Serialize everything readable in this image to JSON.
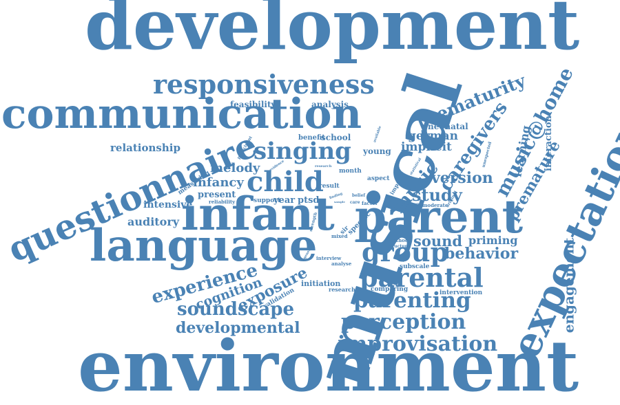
{
  "colors": {
    "word": "#4a82b4",
    "background": "#ffffff"
  },
  "words": [
    "development",
    "environment",
    "musical",
    "infant",
    "parent",
    "language",
    "communication",
    "questionnaire",
    "expectation",
    "responsiveness",
    "child",
    "singing",
    "parental",
    "group",
    "parenting",
    "perception",
    "improvisation",
    "soundscape",
    "developmental",
    "experience",
    "exposure",
    "cognition",
    "prematurity",
    "caregivers",
    "music",
    "music@home",
    "premature",
    "engagement",
    "behavior",
    "sound",
    "priming",
    "study",
    "version",
    "german",
    "implicit",
    "neonatal",
    "learning",
    "interaction",
    "melody",
    "infancy",
    "relationship",
    "auditory",
    "intensive",
    "present",
    "measuring",
    "reliability",
    "year",
    "ptsd",
    "feasibility",
    "analysis",
    "benefit",
    "school",
    "young",
    "participant",
    "month",
    "aspect",
    "support",
    "result",
    "validation",
    "initiation",
    "researcher",
    "comparing",
    "intervention",
    "subscale",
    "interview",
    "analyse",
    "method",
    "structure",
    "mixed",
    "strength",
    "specific",
    "impact",
    "unexpected",
    "factor",
    "different",
    "moderate",
    "original",
    "evidence",
    "research",
    "general",
    "statistical",
    "available",
    "belief",
    "finding",
    "care",
    "sir",
    "theme",
    "sample"
  ]
}
